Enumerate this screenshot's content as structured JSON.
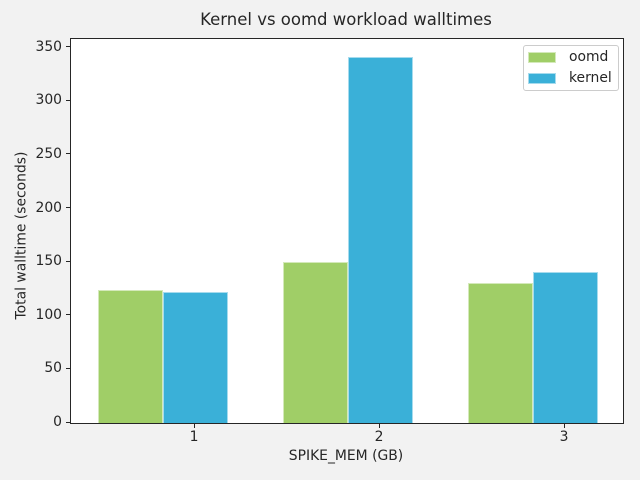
{
  "chart_data": {
    "type": "bar",
    "title": "Kernel vs oomd workload walltimes",
    "xlabel": "SPIKE_MEM (GB)",
    "ylabel": "Total walltime (seconds)",
    "categories": [
      "1",
      "2",
      "3"
    ],
    "series": [
      {
        "name": "oomd",
        "color": "#a0ce67",
        "values": [
          124,
          150,
          131
        ]
      },
      {
        "name": "kernel",
        "color": "#3ab0d8",
        "values": [
          122,
          341,
          141
        ]
      }
    ],
    "ylim": [
      0,
      358.05
    ],
    "yticks": [
      0,
      50,
      100,
      150,
      200,
      250,
      300,
      350
    ],
    "grid": false,
    "legend_position": "upper right",
    "figure_background": "#f2f2f2",
    "plot_background": "#ffffff"
  }
}
